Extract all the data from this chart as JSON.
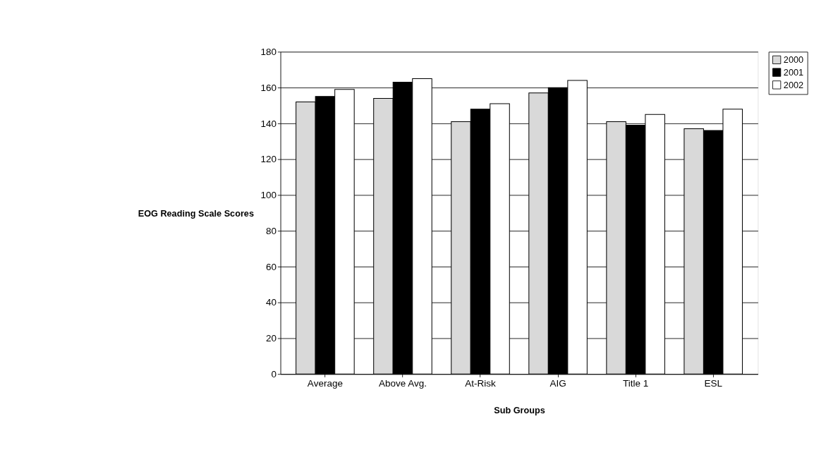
{
  "chart_data": {
    "type": "bar",
    "xlabel": "Sub Groups",
    "ylabel": "EOG Reading Scale Scores",
    "categories": [
      "Average",
      "Above Avg.",
      "At-Risk",
      "AIG",
      "Title 1",
      "ESL"
    ],
    "series": [
      {
        "name": "2000",
        "color": "#d9d9d9",
        "values": [
          152,
          154,
          141,
          157,
          141,
          137
        ]
      },
      {
        "name": "2001",
        "color": "#000000",
        "values": [
          155,
          163,
          148,
          160,
          139,
          136
        ]
      },
      {
        "name": "2002",
        "color": "#ffffff",
        "values": [
          159,
          165,
          151,
          164,
          145,
          148
        ]
      }
    ],
    "ylim": [
      0,
      180
    ],
    "yticks": [
      0,
      20,
      40,
      60,
      80,
      100,
      120,
      140,
      160,
      180
    ],
    "grid": "y",
    "legend": "right"
  }
}
